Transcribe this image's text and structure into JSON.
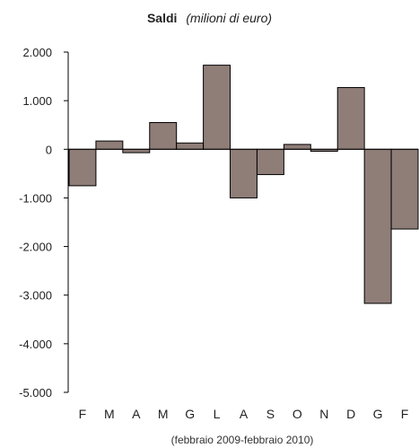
{
  "chart_data": {
    "type": "bar",
    "title": "Saldi",
    "subtitle": "(milioni di euro)",
    "xlabel": "(febbraio 2009-febbraio 2010)",
    "ylabel": "",
    "categories": [
      "F",
      "M",
      "A",
      "M",
      "G",
      "L",
      "A",
      "S",
      "O",
      "N",
      "D",
      "G",
      "F"
    ],
    "values": [
      -750,
      170,
      -70,
      550,
      130,
      1730,
      -1000,
      -520,
      100,
      -40,
      1270,
      -3170,
      -1640
    ],
    "yticks": [
      2000,
      1000,
      0,
      -1000,
      -2000,
      -3000,
      -4000,
      -5000
    ],
    "ytick_labels": [
      "2.000",
      "1.000",
      "0",
      "-1.000",
      "-2.000",
      "-3.000",
      "-4.000",
      "-5.000"
    ],
    "ylim": [
      -5000,
      2000
    ],
    "grid": false,
    "bar_color": "#8f7d78",
    "bar_edge": "#000000"
  }
}
